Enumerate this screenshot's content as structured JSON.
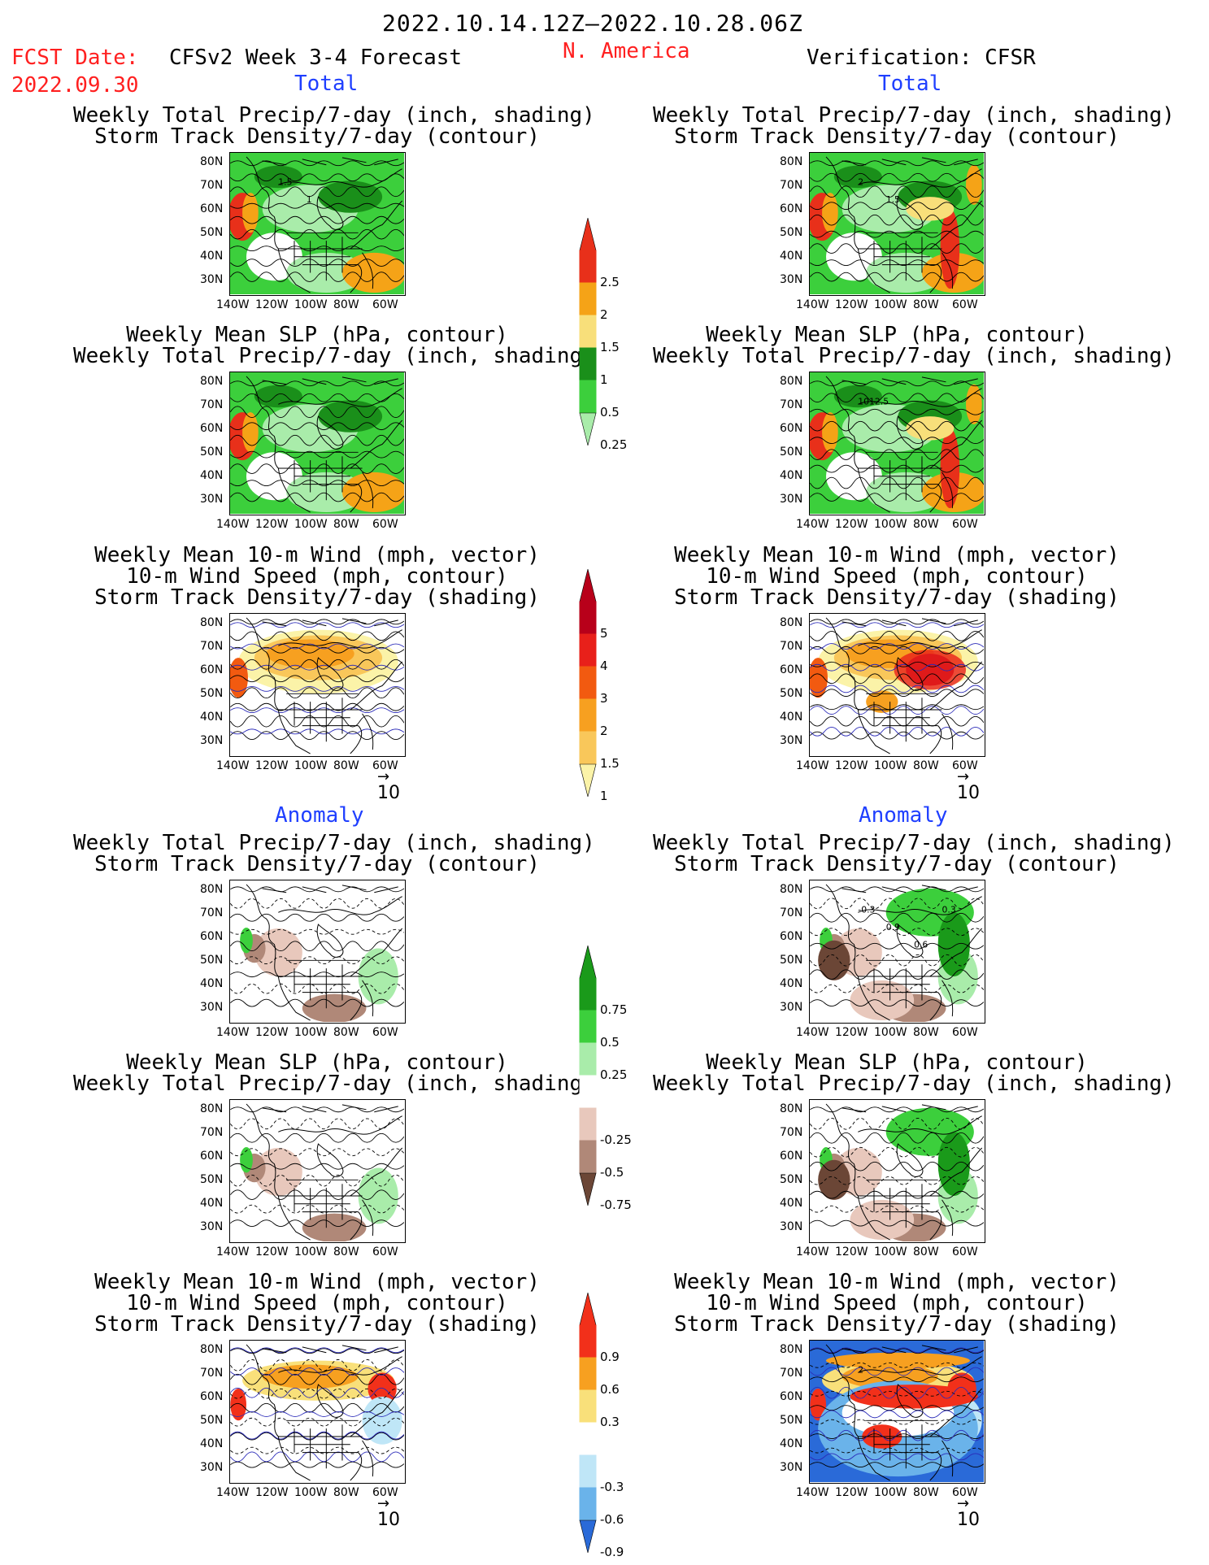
{
  "header": {
    "period": "2022.10.14.12Z–2022.10.28.06Z",
    "fcst_date_label": "FCST Date:",
    "fcst_date_value": "2022.09.30",
    "model_label": "CFSv2 Week 3-4 Forecast",
    "region": "N. America",
    "verification_label": "Verification: CFSR"
  },
  "sections": {
    "total": "Total",
    "anomaly": "Anomaly"
  },
  "panel_titles": {
    "precip_storm": [
      "Weekly Total Precip/7-day (inch, shading)",
      "Storm Track Density/7-day (contour)"
    ],
    "slp_precip": [
      "Weekly Mean SLP (hPa, contour)",
      "Weekly Total Precip/7-day (inch, shading)"
    ],
    "wind_storm": [
      "Weekly Mean 10-m Wind (mph, vector)",
      "10-m Wind Speed (mph, contour)",
      "Storm Track Density/7-day (shading)"
    ]
  },
  "axes": {
    "lat_ticks": [
      "80N",
      "70N",
      "60N",
      "50N",
      "40N",
      "30N"
    ],
    "lon_ticks": [
      "140W",
      "120W",
      "100W",
      "80W",
      "60W"
    ]
  },
  "contour_labels": {
    "fcst_precip": [
      "1.5",
      "1"
    ],
    "obs_precip": [
      "2",
      "1.5"
    ],
    "obs_slp": [
      "1012.5"
    ],
    "obs_anom_precip": [
      "-0.3",
      "0.9",
      "0.6",
      "0.3"
    ],
    "obs_anom_wind": [
      "2"
    ]
  },
  "vector_ref": "10",
  "colorbars": {
    "precip_total": {
      "labels": [
        "2.5",
        "2",
        "1.5",
        "1",
        "0.5",
        "0.25"
      ],
      "colors": [
        "#e8301a",
        "#f5a317",
        "#f8df7a",
        "#1a8f1a",
        "#3ccf3c",
        "#a9ecaa"
      ]
    },
    "storm_total": {
      "labels": [
        "5",
        "4",
        "3",
        "2",
        "1.5",
        "1"
      ],
      "colors": [
        "#b8001a",
        "#e8201a",
        "#f25a10",
        "#f7a020",
        "#f9c75a",
        "#fbf3a8"
      ]
    },
    "precip_anom": {
      "labels": [
        "0.75",
        "0.5",
        "0.25",
        "-0.25",
        "-0.5",
        "-0.75"
      ],
      "colors": [
        "#1a9a1a",
        "#3ccf3c",
        "#a9ecaa",
        "#ffffff",
        "#e8c8bc",
        "#b08878",
        "#6b4636"
      ]
    },
    "storm_anom": {
      "labels": [
        "0.9",
        "0.6",
        "0.3",
        "-0.3",
        "-0.6",
        "-0.9"
      ],
      "colors": [
        "#f2301a",
        "#f7a020",
        "#f9e07a",
        "#ffffff",
        "#bfe6f7",
        "#6ab3ea",
        "#2a6ad8"
      ]
    }
  }
}
